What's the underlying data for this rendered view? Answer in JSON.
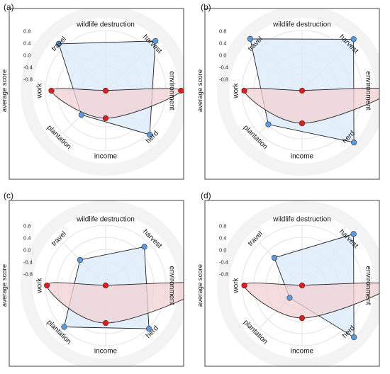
{
  "figure": {
    "categories": [
      "wildlife destruction",
      "harvest",
      "environment",
      "herd",
      "income",
      "plantation",
      "work",
      "travel"
    ],
    "ylabel": "average score",
    "radial_ticks": [
      "0.8",
      "0.4",
      "0.0",
      "-0.4",
      "-0.8"
    ],
    "colors": {
      "blue_fill": "#dcebfa",
      "blue_marker": "#5b9ae0",
      "red_fill": "#f2d2d4",
      "red_marker": "#e51b1b",
      "frame": "#444444"
    }
  },
  "chart_data": [
    {
      "panel": "(a)",
      "type": "radar",
      "ylim": [
        -1.2,
        1.2
      ],
      "ylabel": "average score",
      "categories": [
        "wildlife destruction",
        "harvest",
        "environment",
        "herd",
        "income",
        "plantation",
        "work",
        "travel"
      ],
      "series": [
        {
          "color": "#5b9ae0",
          "values": [
            null,
            0.2,
            null,
            0.04,
            null,
            -0.52,
            null,
            0.12
          ]
        },
        {
          "color": "#e51b1b",
          "values": [
            null,
            null,
            0.3,
            null,
            -0.65,
            null,
            -0.12,
            null
          ]
        }
      ]
    },
    {
      "panel": "(b)",
      "type": "radar",
      "ylim": [
        -1.2,
        1.2
      ],
      "ylabel": "average score",
      "categories": [
        "wildlife destruction",
        "harvest",
        "environment",
        "herd",
        "income",
        "plantation",
        "work",
        "travel"
      ],
      "series": [
        {
          "color": "#5b9ae0",
          "values": [
            null,
            0.25,
            null,
            0.26,
            null,
            -0.25,
            null,
            0.26
          ]
        },
        {
          "color": "#e51b1b",
          "values": [
            null,
            null,
            0.57,
            null,
            -0.55,
            null,
            -0.05,
            null
          ]
        }
      ]
    },
    {
      "panel": "(c)",
      "type": "radar",
      "ylim": [
        -1.2,
        1.2
      ],
      "ylabel": "average score",
      "categories": [
        "wildlife destruction",
        "harvest",
        "environment",
        "herd",
        "income",
        "plantation",
        "work",
        "travel"
      ],
      "series": [
        {
          "color": "#5b9ae0",
          "values": [
            null,
            -0.11,
            null,
            0.02,
            null,
            -0.03,
            null,
            -0.48
          ]
        },
        {
          "color": "#e51b1b",
          "values": [
            null,
            null,
            0.8,
            null,
            -0.45,
            null,
            -0.03,
            null
          ]
        }
      ]
    },
    {
      "panel": "(d)",
      "type": "radar",
      "ylim": [
        -1.2,
        1.2
      ],
      "ylabel": "average score",
      "categories": [
        "wildlife destruction",
        "harvest",
        "environment",
        "herd",
        "income",
        "plantation",
        "work",
        "travel"
      ],
      "series": [
        {
          "color": "#5b9ae0",
          "values": [
            null,
            0.25,
            null,
            0.26,
            null,
            -0.85,
            null,
            -0.42
          ]
        },
        {
          "color": "#e51b1b",
          "values": [
            null,
            null,
            0.57,
            null,
            -0.55,
            null,
            -0.05,
            null
          ]
        }
      ]
    }
  ]
}
